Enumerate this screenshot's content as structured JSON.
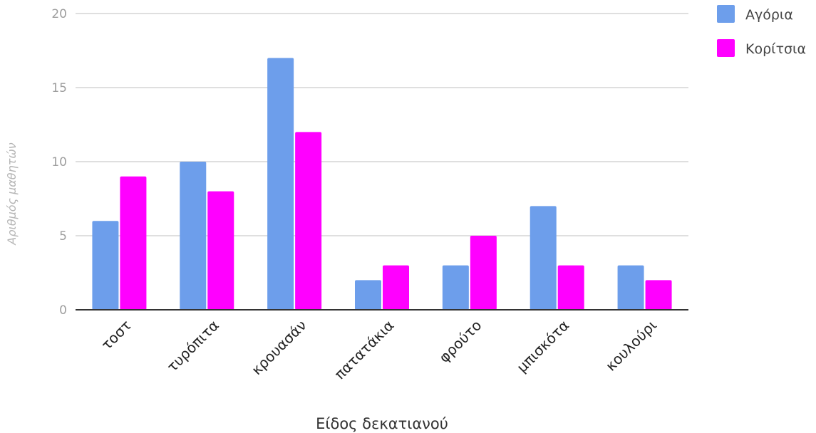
{
  "chart_data": {
    "type": "bar",
    "title": "",
    "xlabel": "Είδος δεκατιανού",
    "ylabel": "Αριθμός μαθητών",
    "categories": [
      "τοστ",
      "τυρόπιτα",
      "κρουασάν",
      "πατατάκια",
      "φρούτο",
      "μπισκότα",
      "κουλούρι"
    ],
    "series": [
      {
        "name": "Αγόρια",
        "color": "#6d9eeb",
        "values": [
          6,
          10,
          17,
          2,
          3,
          7,
          3
        ]
      },
      {
        "name": "Κορίτσια",
        "color": "#ff00ff",
        "values": [
          9,
          8,
          12,
          3,
          5,
          3,
          2
        ]
      }
    ],
    "ylim": [
      0,
      20
    ],
    "yticks": [
      "0",
      "5",
      "10",
      "15",
      "20"
    ],
    "grid": true,
    "legend_position": "top-right"
  }
}
